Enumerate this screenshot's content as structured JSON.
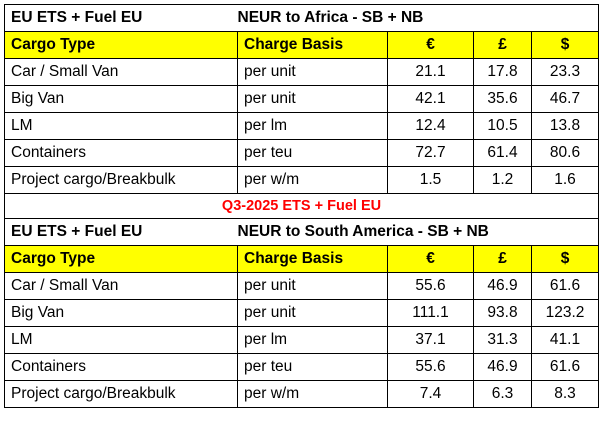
{
  "upper": {
    "group": "EU ETS + Fuel EU",
    "route": "NEUR to Africa - SB + NB",
    "headers": [
      "Cargo Type",
      "Charge Basis",
      "€",
      "£",
      "$"
    ],
    "rows": [
      [
        "Car / Small Van",
        "per unit",
        "21.1",
        "17.8",
        "23.3"
      ],
      [
        "Big Van",
        "per unit",
        "42.1",
        "35.6",
        "46.7"
      ],
      [
        "LM",
        "per lm",
        "12.4",
        "10.5",
        "13.8"
      ],
      [
        "Containers",
        "per teu",
        "72.7",
        "61.4",
        "80.6"
      ],
      [
        "Project cargo/Breakbulk",
        "per w/m",
        "1.5",
        "1.2",
        "1.6"
      ]
    ]
  },
  "separator": "Q3-2025 ETS + Fuel EU",
  "lower": {
    "group": "EU ETS + Fuel EU",
    "route": "NEUR to South America - SB + NB",
    "headers": [
      "Cargo Type",
      "Charge Basis",
      "€",
      "£",
      "$"
    ],
    "rows": [
      [
        "Car / Small Van",
        "per unit",
        "55.6",
        "46.9",
        "61.6"
      ],
      [
        "Big Van",
        "per unit",
        "111.1",
        "93.8",
        "123.2"
      ],
      [
        "LM",
        "per lm",
        "37.1",
        "31.3",
        "41.1"
      ],
      [
        "Containers",
        "per teu",
        "55.6",
        "46.9",
        "61.6"
      ],
      [
        "Project cargo/Breakbulk",
        "per w/m",
        "7.4",
        "6.3",
        "8.3"
      ]
    ]
  },
  "colors": {
    "header_bg": "#ffff00",
    "separator_text": "#ff0000",
    "border": "#000000"
  }
}
